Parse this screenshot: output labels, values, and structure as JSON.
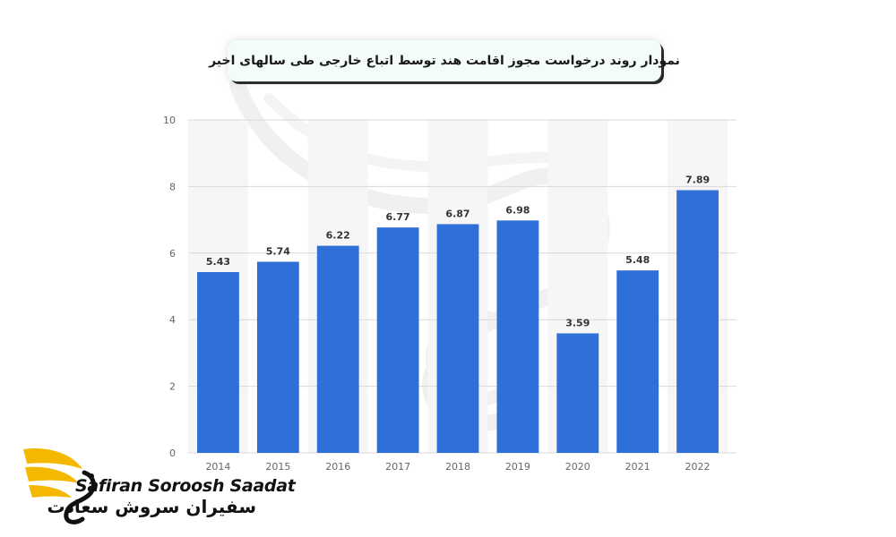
{
  "title": "نمودار روند درخواست مجوز اقامت هند توسط اتباع خارجی طی سالهای اخیر",
  "logo": {
    "latin": "Safiran Soroosh Saadat",
    "persian": "سفیران سروش سعادت",
    "colors": {
      "wing": "#f5b800",
      "text": "#111111"
    }
  },
  "chart_data": {
    "type": "bar",
    "categories": [
      "2014",
      "2015",
      "2016",
      "2017",
      "2018",
      "2019",
      "2020",
      "2021",
      "2022"
    ],
    "values": [
      5.43,
      5.74,
      6.22,
      6.77,
      6.87,
      6.98,
      3.59,
      5.48,
      7.89
    ],
    "value_labels": [
      "5.43",
      "5.74",
      "6.22",
      "6.77",
      "6.87",
      "6.98",
      "3.59",
      "5.48",
      "7.89"
    ],
    "ylim": [
      0,
      10
    ],
    "yticks": [
      "0",
      "2",
      "4",
      "6",
      "8",
      "10"
    ],
    "xlabel": "",
    "ylabel": "",
    "grid": true,
    "colors": {
      "bar": "#2f6fd8",
      "grid": "#d9d9d9",
      "tick": "#666666",
      "label": "#333333"
    }
  }
}
